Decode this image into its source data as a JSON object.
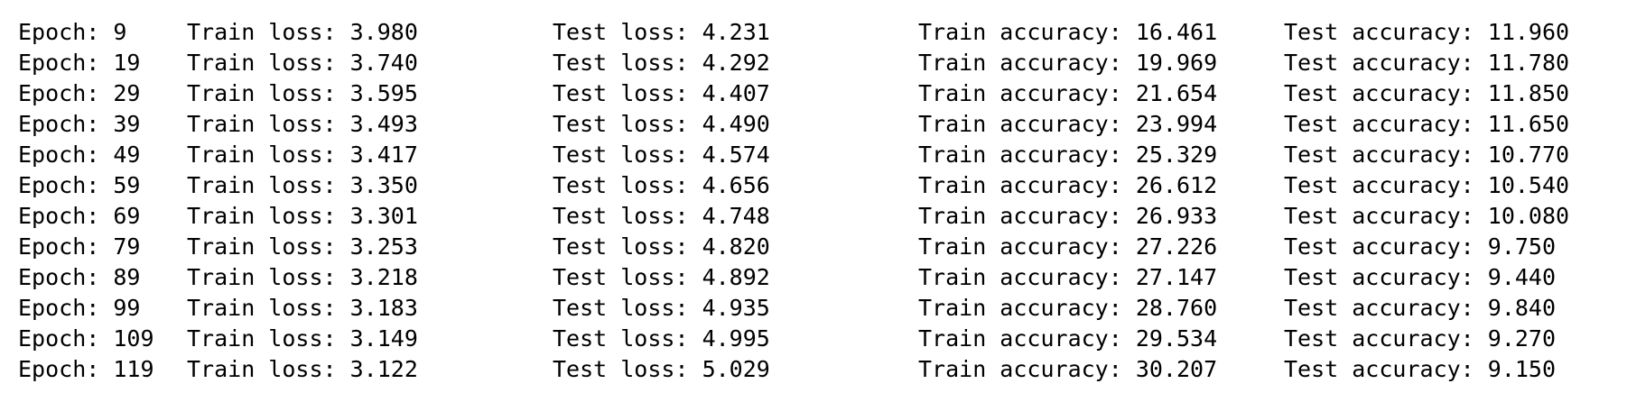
{
  "log": {
    "rows": [
      {
        "epoch": "Epoch: 9",
        "train_loss": "Train loss: 3.980",
        "test_loss": "Test loss: 4.231",
        "train_acc": "Train accuracy: 16.461",
        "test_acc": "Test accuracy: 11.960"
      },
      {
        "epoch": "Epoch: 19",
        "train_loss": "Train loss: 3.740",
        "test_loss": "Test loss: 4.292",
        "train_acc": "Train accuracy: 19.969",
        "test_acc": "Test accuracy: 11.780"
      },
      {
        "epoch": "Epoch: 29",
        "train_loss": "Train loss: 3.595",
        "test_loss": "Test loss: 4.407",
        "train_acc": "Train accuracy: 21.654",
        "test_acc": "Test accuracy: 11.850"
      },
      {
        "epoch": "Epoch: 39",
        "train_loss": "Train loss: 3.493",
        "test_loss": "Test loss: 4.490",
        "train_acc": "Train accuracy: 23.994",
        "test_acc": "Test accuracy: 11.650"
      },
      {
        "epoch": "Epoch: 49",
        "train_loss": "Train loss: 3.417",
        "test_loss": "Test loss: 4.574",
        "train_acc": "Train accuracy: 25.329",
        "test_acc": "Test accuracy: 10.770"
      },
      {
        "epoch": "Epoch: 59",
        "train_loss": "Train loss: 3.350",
        "test_loss": "Test loss: 4.656",
        "train_acc": "Train accuracy: 26.612",
        "test_acc": "Test accuracy: 10.540"
      },
      {
        "epoch": "Epoch: 69",
        "train_loss": "Train loss: 3.301",
        "test_loss": "Test loss: 4.748",
        "train_acc": "Train accuracy: 26.933",
        "test_acc": "Test accuracy: 10.080"
      },
      {
        "epoch": "Epoch: 79",
        "train_loss": "Train loss: 3.253",
        "test_loss": "Test loss: 4.820",
        "train_acc": "Train accuracy: 27.226",
        "test_acc": "Test accuracy: 9.750"
      },
      {
        "epoch": "Epoch: 89",
        "train_loss": "Train loss: 3.218",
        "test_loss": "Test loss: 4.892",
        "train_acc": "Train accuracy: 27.147",
        "test_acc": "Test accuracy: 9.440"
      },
      {
        "epoch": "Epoch: 99",
        "train_loss": "Train loss: 3.183",
        "test_loss": "Test loss: 4.935",
        "train_acc": "Train accuracy: 28.760",
        "test_acc": "Test accuracy: 9.840"
      },
      {
        "epoch": "Epoch: 109",
        "train_loss": "Train loss: 3.149",
        "test_loss": "Test loss: 4.995",
        "train_acc": "Train accuracy: 29.534",
        "test_acc": "Test accuracy: 9.270"
      },
      {
        "epoch": "Epoch: 119",
        "train_loss": "Train loss: 3.122",
        "test_loss": "Test loss: 5.029",
        "train_acc": "Train accuracy: 30.207",
        "test_acc": "Test accuracy: 9.150"
      }
    ]
  }
}
